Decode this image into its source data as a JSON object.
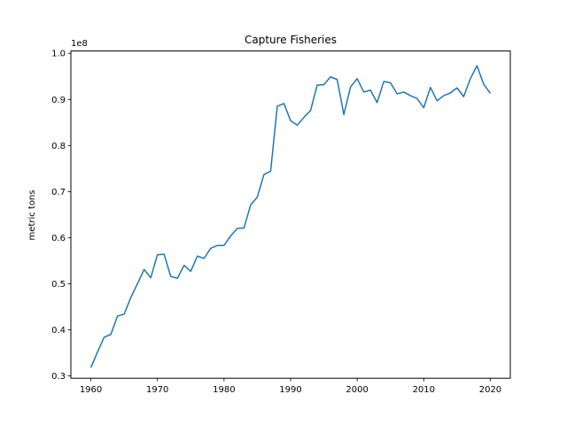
{
  "chart_data": {
    "type": "line",
    "title": "Capture Fisheries",
    "xlabel": "",
    "ylabel": "metric tons",
    "y_multiplier_label": "1e8",
    "y_multiplier": 100000000,
    "xlim": [
      1957,
      2023
    ],
    "ylim": [
      0.295,
      1.005
    ],
    "xticks": [
      1960,
      1970,
      1980,
      1990,
      2000,
      2010,
      2020
    ],
    "xtick_labels": [
      "1960",
      "1970",
      "1980",
      "1990",
      "2000",
      "2010",
      "2020"
    ],
    "yticks": [
      0.3,
      0.4,
      0.5,
      0.6,
      0.7,
      0.8,
      0.9,
      1.0
    ],
    "ytick_labels": [
      "0.3",
      "0.4",
      "0.5",
      "0.6",
      "0.7",
      "0.8",
      "0.9",
      "1.0"
    ],
    "grid": false,
    "color": "#1f77b4",
    "series": [
      {
        "x": [
          1960,
          1961,
          1962,
          1963,
          1964,
          1965,
          1966,
          1967,
          1968,
          1969,
          1970,
          1971,
          1972,
          1973,
          1974,
          1975,
          1976,
          1977,
          1978,
          1979,
          1980,
          1981,
          1982,
          1983,
          1984,
          1985,
          1986,
          1987,
          1988,
          1989,
          1990,
          1991,
          1992,
          1993,
          1994,
          1995,
          1996,
          1997,
          1998,
          1999,
          2000,
          2001,
          2002,
          2003,
          2004,
          2005,
          2006,
          2007,
          2008,
          2009,
          2010,
          2011,
          2012,
          2013,
          2014,
          2015,
          2016,
          2017,
          2018,
          2019,
          2020
        ],
        "values": [
          0.318,
          0.352,
          0.384,
          0.39,
          0.43,
          0.434,
          0.47,
          0.5,
          0.531,
          0.513,
          0.563,
          0.564,
          0.516,
          0.512,
          0.54,
          0.527,
          0.56,
          0.555,
          0.577,
          0.583,
          0.583,
          0.604,
          0.62,
          0.621,
          0.671,
          0.688,
          0.737,
          0.744,
          0.885,
          0.891,
          0.854,
          0.844,
          0.861,
          0.876,
          0.931,
          0.932,
          0.949,
          0.943,
          0.867,
          0.927,
          0.945,
          0.916,
          0.92,
          0.893,
          0.939,
          0.936,
          0.912,
          0.916,
          0.908,
          0.902,
          0.882,
          0.926,
          0.897,
          0.908,
          0.914,
          0.925,
          0.906,
          0.945,
          0.973,
          0.933,
          0.913
        ]
      }
    ]
  }
}
